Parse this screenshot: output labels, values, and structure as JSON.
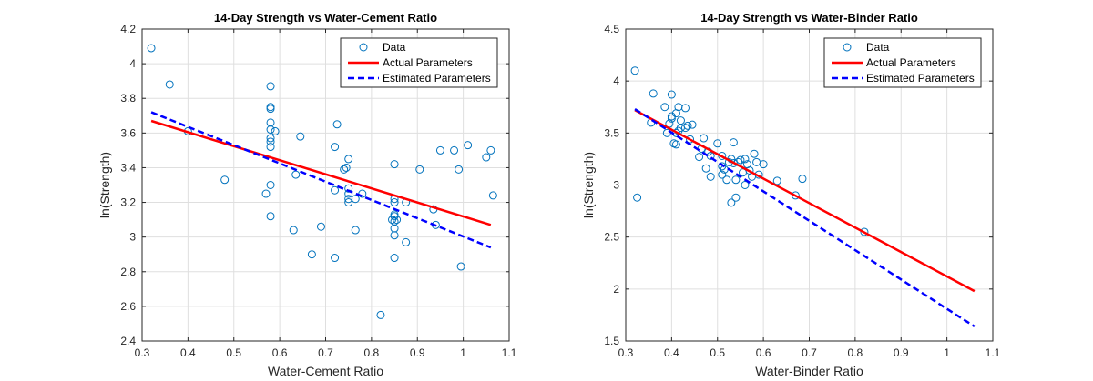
{
  "colors": {
    "data": "#0072BD",
    "actual": "#FF0000",
    "estimated": "#0000FF",
    "grid": "#DFDFDF",
    "axis": "#262626"
  },
  "chart_data": [
    {
      "type": "scatter",
      "title": "14-Day Strength vs Water-Cement Ratio",
      "xlabel": "Water-Cement Ratio",
      "ylabel": "ln(Strength)",
      "xlim": [
        0.3,
        1.1
      ],
      "ylim": [
        2.4,
        4.2
      ],
      "xticks": [
        "0.3",
        "0.4",
        "0.5",
        "0.6",
        "0.7",
        "0.8",
        "0.9",
        "1",
        "1.1"
      ],
      "yticks": [
        "2.4",
        "2.6",
        "2.8",
        "3",
        "3.2",
        "3.4",
        "3.6",
        "3.8",
        "4",
        "4.2"
      ],
      "grid": true,
      "legend_position": "top-right",
      "series": [
        {
          "name": "Data",
          "kind": "markers",
          "x": [
            0.32,
            0.36,
            0.4,
            0.48,
            0.57,
            0.58,
            0.58,
            0.58,
            0.58,
            0.58,
            0.58,
            0.58,
            0.58,
            0.58,
            0.58,
            0.59,
            0.63,
            0.635,
            0.645,
            0.67,
            0.69,
            0.72,
            0.72,
            0.72,
            0.725,
            0.74,
            0.745,
            0.75,
            0.75,
            0.75,
            0.75,
            0.75,
            0.765,
            0.765,
            0.78,
            0.82,
            0.845,
            0.85,
            0.85,
            0.85,
            0.85,
            0.85,
            0.85,
            0.85,
            0.85,
            0.85,
            0.855,
            0.875,
            0.875,
            0.905,
            0.935,
            0.94,
            0.95,
            0.98,
            0.99,
            0.995,
            1.01,
            1.05,
            1.06,
            1.065
          ],
          "y": [
            4.09,
            3.88,
            3.61,
            3.33,
            3.25,
            3.87,
            3.75,
            3.74,
            3.66,
            3.57,
            3.55,
            3.52,
            3.3,
            3.12,
            3.62,
            3.61,
            3.04,
            3.36,
            3.58,
            2.9,
            3.06,
            2.88,
            3.27,
            3.52,
            3.65,
            3.39,
            3.4,
            3.45,
            3.28,
            3.25,
            3.22,
            3.2,
            3.22,
            3.04,
            3.25,
            2.55,
            3.1,
            3.42,
            3.22,
            3.2,
            3.13,
            3.12,
            3.09,
            3.05,
            3.01,
            2.88,
            3.1,
            3.2,
            2.97,
            3.39,
            3.16,
            3.07,
            3.5,
            3.5,
            3.39,
            2.83,
            3.53,
            3.46,
            3.5,
            3.24
          ]
        },
        {
          "name": "Actual Parameters",
          "kind": "line",
          "x": [
            0.32,
            1.06
          ],
          "y": [
            3.67,
            3.07
          ]
        },
        {
          "name": "Estimated Parameters",
          "kind": "dashed-line",
          "x": [
            0.32,
            1.06
          ],
          "y": [
            3.72,
            2.94
          ]
        }
      ]
    },
    {
      "type": "scatter",
      "title": "14-Day Strength vs Water-Binder Ratio",
      "xlabel": "Water-Binder Ratio",
      "ylabel": "ln(Strength)",
      "xlim": [
        0.3,
        1.1
      ],
      "ylim": [
        1.5,
        4.5
      ],
      "xticks": [
        "0.3",
        "0.4",
        "0.5",
        "0.6",
        "0.7",
        "0.8",
        "0.9",
        "1",
        "1.1"
      ],
      "yticks": [
        "1.5",
        "2",
        "2.5",
        "3",
        "3.5",
        "4",
        "4.5"
      ],
      "grid": true,
      "legend_position": "top-right",
      "series": [
        {
          "name": "Data",
          "kind": "markers",
          "x": [
            0.32,
            0.325,
            0.355,
            0.36,
            0.385,
            0.39,
            0.395,
            0.4,
            0.4,
            0.4,
            0.405,
            0.41,
            0.41,
            0.41,
            0.415,
            0.415,
            0.42,
            0.42,
            0.43,
            0.43,
            0.435,
            0.44,
            0.445,
            0.46,
            0.465,
            0.47,
            0.475,
            0.48,
            0.485,
            0.485,
            0.5,
            0.51,
            0.51,
            0.51,
            0.515,
            0.52,
            0.525,
            0.53,
            0.53,
            0.535,
            0.535,
            0.54,
            0.54,
            0.545,
            0.55,
            0.555,
            0.56,
            0.56,
            0.565,
            0.57,
            0.575,
            0.58,
            0.585,
            0.59,
            0.6,
            0.63,
            0.67,
            0.685,
            0.82
          ],
          "y": [
            4.1,
            2.88,
            3.6,
            3.88,
            3.75,
            3.5,
            3.59,
            3.87,
            3.66,
            3.64,
            3.4,
            3.69,
            3.5,
            3.39,
            3.75,
            3.52,
            3.55,
            3.62,
            3.74,
            3.55,
            3.57,
            3.44,
            3.58,
            3.27,
            3.35,
            3.45,
            3.16,
            3.32,
            3.28,
            3.08,
            3.4,
            3.1,
            3.18,
            3.28,
            3.15,
            3.05,
            3.22,
            3.25,
            2.83,
            3.41,
            3.21,
            3.05,
            2.88,
            3.22,
            3.24,
            3.12,
            3.25,
            3.0,
            3.2,
            3.14,
            3.08,
            3.3,
            3.22,
            3.1,
            3.2,
            3.04,
            2.9,
            3.06,
            2.55
          ]
        },
        {
          "name": "Actual Parameters",
          "kind": "line",
          "x": [
            0.32,
            1.06
          ],
          "y": [
            3.72,
            1.98
          ]
        },
        {
          "name": "Estimated Parameters",
          "kind": "dashed-line",
          "x": [
            0.32,
            1.06
          ],
          "y": [
            3.73,
            1.64
          ]
        }
      ]
    }
  ]
}
